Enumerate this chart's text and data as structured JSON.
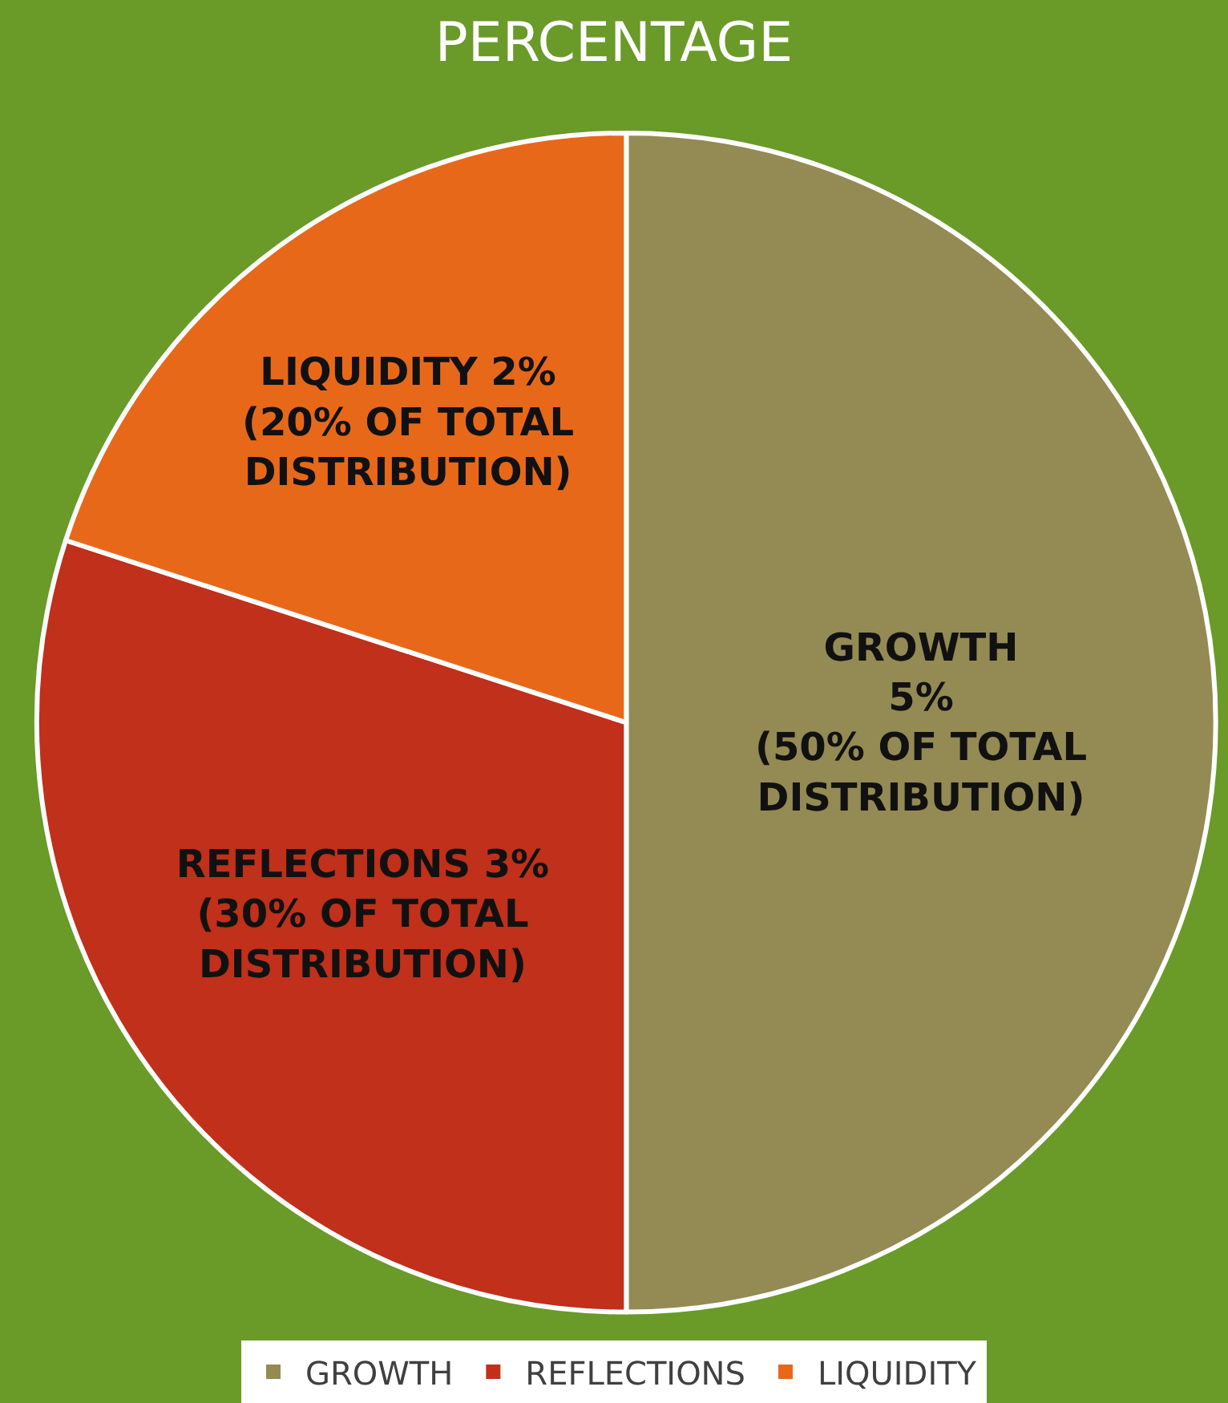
{
  "chart_data": {
    "type": "pie",
    "title": "PERCENTAGE",
    "categories": [
      "GROWTH",
      "REFLECTIONS",
      "LIQUIDITY"
    ],
    "values": [
      5,
      3,
      2
    ],
    "colors": [
      "#948a54",
      "#c0301a",
      "#e8681a"
    ],
    "value_labels": [
      "GROWTH\n5%\n(50% OF TOTAL\nDISTRIBUTION)",
      "REFLECTIONS 3%\n(30% OF TOTAL\nDISTRIBUTION)",
      "LIQUIDITY 2%\n(20% OF TOTAL\nDISTRIBUTION)"
    ],
    "legend": "bottom"
  }
}
